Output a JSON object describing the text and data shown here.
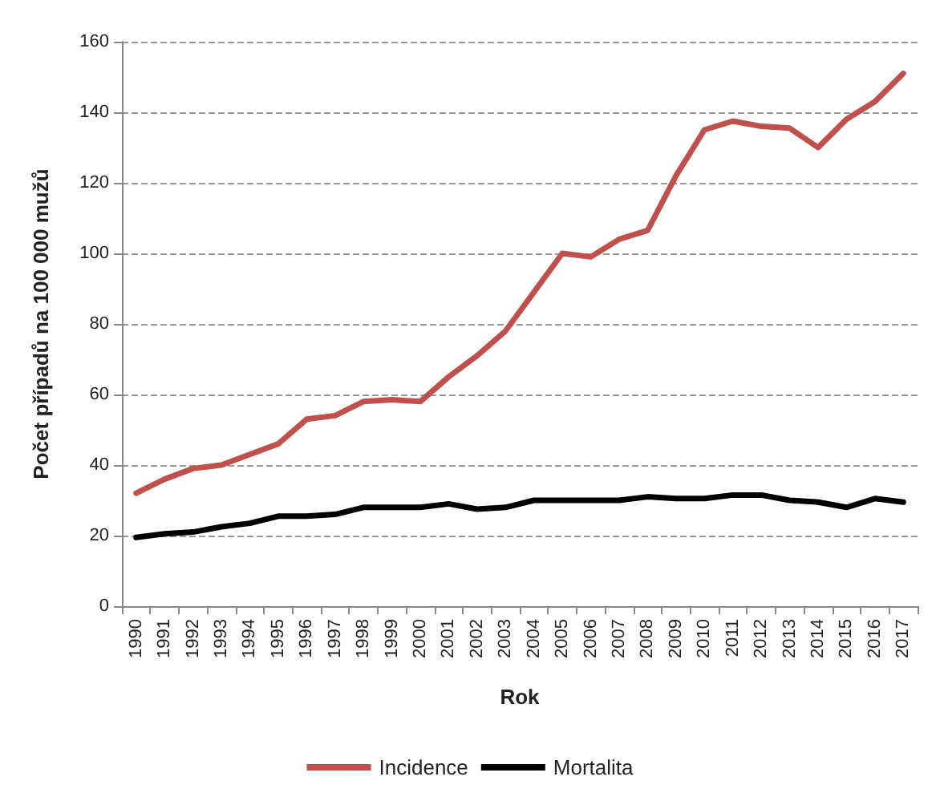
{
  "chart_data": {
    "type": "line",
    "xlabel": "Rok",
    "ylabel": "Počet případů na 100 000 mužů",
    "categories": [
      "1990",
      "1991",
      "1992",
      "1993",
      "1994",
      "1995",
      "1996",
      "1997",
      "1998",
      "1999",
      "2000",
      "2001",
      "2002",
      "2003",
      "2004",
      "2005",
      "2006",
      "2007",
      "2008",
      "2009",
      "2010",
      "2011",
      "2012",
      "2013",
      "2014",
      "2015",
      "2016",
      "2017"
    ],
    "series": [
      {
        "name": "Incidence",
        "color": "#c0504d",
        "values": [
          32,
          36,
          39,
          40,
          43,
          46,
          53,
          54,
          58,
          58.5,
          58,
          65,
          71,
          78,
          89,
          100,
          99,
          104,
          106.5,
          122,
          135,
          137.5,
          136,
          135.5,
          130,
          138,
          143,
          151
        ]
      },
      {
        "name": "Mortalita",
        "color": "#000000",
        "values": [
          19.5,
          20.5,
          21,
          22.5,
          23.5,
          25.5,
          25.5,
          26,
          28,
          28,
          28,
          29,
          27.5,
          28,
          30,
          30,
          30,
          30,
          31,
          30.5,
          30.5,
          31.5,
          31.5,
          30,
          29.5,
          28,
          30.5,
          29.5
        ]
      }
    ],
    "ylim": [
      0,
      160
    ],
    "yticks": [
      0,
      20,
      40,
      60,
      80,
      100,
      120,
      140,
      160
    ],
    "grid": "y",
    "legend": "bottom",
    "marker": "none",
    "line_style": "solid"
  }
}
